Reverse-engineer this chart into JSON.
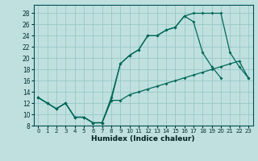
{
  "xlabel": "Humidex (Indice chaleur)",
  "bg_color": "#c0e0e0",
  "grid_color": "#98c8c8",
  "line_color": "#006858",
  "xlim": [
    -0.5,
    23.5
  ],
  "ylim": [
    8,
    29.5
  ],
  "yticks": [
    8,
    10,
    12,
    14,
    16,
    18,
    20,
    22,
    24,
    26,
    28
  ],
  "xticks": [
    0,
    1,
    2,
    3,
    4,
    5,
    6,
    7,
    8,
    9,
    10,
    11,
    12,
    13,
    14,
    15,
    16,
    17,
    18,
    19,
    20,
    21,
    22,
    23
  ],
  "line_upper_x": [
    0,
    1,
    2,
    3,
    4,
    5,
    6,
    7,
    8,
    9,
    10,
    11,
    12,
    13,
    14,
    15,
    16,
    17,
    18,
    19,
    20,
    21,
    22,
    23
  ],
  "line_upper_y": [
    13,
    12,
    11,
    12,
    9.5,
    9.5,
    8.5,
    8.5,
    13,
    19,
    20.5,
    21.5,
    24,
    24,
    25,
    25.5,
    27.5,
    28,
    28,
    28,
    28,
    21,
    18.5,
    16.5
  ],
  "line_mid_x": [
    0,
    1,
    2,
    3,
    4,
    5,
    6,
    7,
    8,
    9,
    10,
    11,
    12,
    13,
    14,
    15,
    16,
    17,
    18,
    19,
    20
  ],
  "line_mid_y": [
    13,
    12,
    11,
    12,
    9.5,
    9.5,
    8.5,
    8.5,
    12.5,
    19,
    20.5,
    21.5,
    24,
    24,
    25,
    25.5,
    27.5,
    26.5,
    21,
    18.5,
    16.5
  ],
  "line_diag_x": [
    0,
    1,
    2,
    3,
    4,
    5,
    6,
    7,
    8,
    9,
    10,
    11,
    12,
    13,
    14,
    15,
    16,
    17,
    18,
    19,
    20,
    21,
    22,
    23
  ],
  "line_diag_y": [
    13,
    12,
    11,
    12,
    9.5,
    9.5,
    8.5,
    8.5,
    12.5,
    12.5,
    13.5,
    14,
    14.5,
    15,
    15.5,
    16,
    16.5,
    17,
    17.5,
    18,
    18.5,
    19,
    19.5,
    16.5
  ]
}
